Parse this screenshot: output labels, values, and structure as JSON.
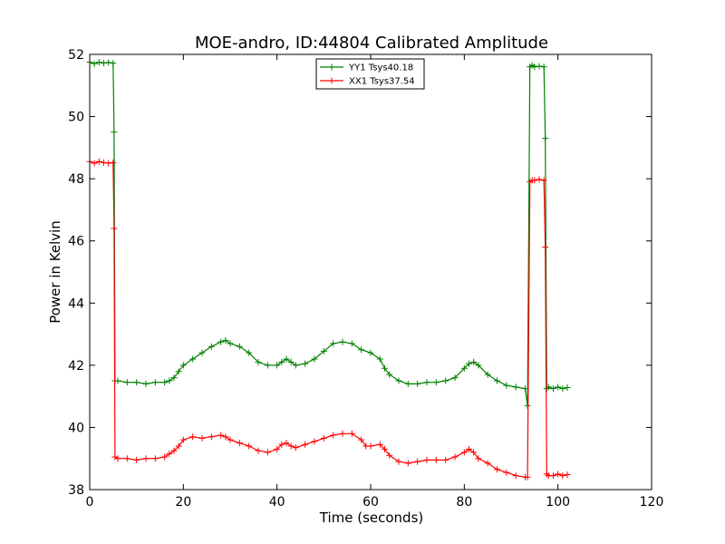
{
  "chart_data": {
    "type": "line",
    "title": "MOE-andro, ID:44804 Calibrated Amplitude",
    "xlabel": "Time (seconds)",
    "ylabel": "Power in Kelvin",
    "xlim": [
      0,
      120
    ],
    "ylim": [
      38,
      52
    ],
    "x_ticks": [
      0,
      20,
      40,
      60,
      80,
      100,
      120
    ],
    "y_ticks": [
      38,
      40,
      42,
      44,
      46,
      48,
      50,
      52
    ],
    "grid": false,
    "legend_position": "top-center",
    "series": [
      {
        "name": "YY1 Tsys40.18",
        "color": "#008000",
        "points": [
          [
            0,
            51.75
          ],
          [
            1,
            51.7
          ],
          [
            2,
            51.75
          ],
          [
            3,
            51.72
          ],
          [
            4,
            51.74
          ],
          [
            5,
            51.72
          ],
          [
            5.2,
            49.5
          ],
          [
            5.4,
            41.5
          ],
          [
            6,
            41.5
          ],
          [
            8,
            41.45
          ],
          [
            10,
            41.45
          ],
          [
            12,
            41.4
          ],
          [
            14,
            41.45
          ],
          [
            16,
            41.45
          ],
          [
            17,
            41.5
          ],
          [
            18,
            41.6
          ],
          [
            19,
            41.8
          ],
          [
            20,
            42.0
          ],
          [
            22,
            42.2
          ],
          [
            24,
            42.4
          ],
          [
            26,
            42.6
          ],
          [
            28,
            42.75
          ],
          [
            29,
            42.8
          ],
          [
            30,
            42.7
          ],
          [
            32,
            42.6
          ],
          [
            34,
            42.4
          ],
          [
            36,
            42.1
          ],
          [
            38,
            42.0
          ],
          [
            40,
            42.0
          ],
          [
            41,
            42.1
          ],
          [
            42,
            42.2
          ],
          [
            43,
            42.1
          ],
          [
            44,
            42.0
          ],
          [
            46,
            42.05
          ],
          [
            48,
            42.2
          ],
          [
            50,
            42.45
          ],
          [
            52,
            42.7
          ],
          [
            54,
            42.75
          ],
          [
            56,
            42.7
          ],
          [
            58,
            42.5
          ],
          [
            60,
            42.4
          ],
          [
            62,
            42.2
          ],
          [
            63,
            41.9
          ],
          [
            64,
            41.7
          ],
          [
            66,
            41.5
          ],
          [
            68,
            41.4
          ],
          [
            70,
            41.4
          ],
          [
            72,
            41.45
          ],
          [
            74,
            41.45
          ],
          [
            76,
            41.5
          ],
          [
            78,
            41.6
          ],
          [
            80,
            41.9
          ],
          [
            81,
            42.05
          ],
          [
            82,
            42.1
          ],
          [
            83,
            42.0
          ],
          [
            85,
            41.7
          ],
          [
            87,
            41.5
          ],
          [
            89,
            41.35
          ],
          [
            91,
            41.3
          ],
          [
            93,
            41.25
          ],
          [
            93.5,
            40.7
          ],
          [
            94,
            51.6
          ],
          [
            94.5,
            51.65
          ],
          [
            95,
            51.6
          ],
          [
            96,
            51.62
          ],
          [
            97,
            51.6
          ],
          [
            97.3,
            49.3
          ],
          [
            97.6,
            41.25
          ],
          [
            98,
            41.3
          ],
          [
            99,
            41.25
          ],
          [
            100,
            41.3
          ],
          [
            101,
            41.25
          ],
          [
            102,
            41.28
          ]
        ]
      },
      {
        "name": "XX1 Tsys37.54",
        "color": "#ff0000",
        "points": [
          [
            0,
            48.55
          ],
          [
            1,
            48.5
          ],
          [
            2,
            48.55
          ],
          [
            3,
            48.52
          ],
          [
            4,
            48.5
          ],
          [
            5,
            48.52
          ],
          [
            5.2,
            46.4
          ],
          [
            5.4,
            39.05
          ],
          [
            6,
            39.0
          ],
          [
            8,
            39.0
          ],
          [
            10,
            38.95
          ],
          [
            12,
            39.0
          ],
          [
            14,
            39.0
          ],
          [
            16,
            39.05
          ],
          [
            17,
            39.15
          ],
          [
            18,
            39.25
          ],
          [
            19,
            39.4
          ],
          [
            20,
            39.6
          ],
          [
            22,
            39.7
          ],
          [
            24,
            39.65
          ],
          [
            26,
            39.7
          ],
          [
            28,
            39.75
          ],
          [
            29,
            39.7
          ],
          [
            30,
            39.6
          ],
          [
            32,
            39.5
          ],
          [
            34,
            39.4
          ],
          [
            36,
            39.25
          ],
          [
            38,
            39.2
          ],
          [
            40,
            39.3
          ],
          [
            41,
            39.45
          ],
          [
            42,
            39.5
          ],
          [
            43,
            39.4
          ],
          [
            44,
            39.35
          ],
          [
            46,
            39.45
          ],
          [
            48,
            39.55
          ],
          [
            50,
            39.65
          ],
          [
            52,
            39.75
          ],
          [
            54,
            39.8
          ],
          [
            56,
            39.8
          ],
          [
            58,
            39.6
          ],
          [
            59,
            39.4
          ],
          [
            60,
            39.4
          ],
          [
            62,
            39.45
          ],
          [
            63,
            39.3
          ],
          [
            64,
            39.1
          ],
          [
            66,
            38.9
          ],
          [
            68,
            38.85
          ],
          [
            70,
            38.9
          ],
          [
            72,
            38.95
          ],
          [
            74,
            38.95
          ],
          [
            76,
            38.95
          ],
          [
            78,
            39.05
          ],
          [
            80,
            39.2
          ],
          [
            81,
            39.3
          ],
          [
            82,
            39.2
          ],
          [
            83,
            39.0
          ],
          [
            85,
            38.85
          ],
          [
            87,
            38.65
          ],
          [
            89,
            38.55
          ],
          [
            91,
            38.45
          ],
          [
            93,
            38.4
          ],
          [
            93.5,
            38.4
          ],
          [
            94,
            47.9
          ],
          [
            94.5,
            47.95
          ],
          [
            95,
            47.95
          ],
          [
            96,
            47.98
          ],
          [
            97,
            47.95
          ],
          [
            97.3,
            45.8
          ],
          [
            97.6,
            38.5
          ],
          [
            98,
            38.45
          ],
          [
            99,
            38.45
          ],
          [
            100,
            38.5
          ],
          [
            101,
            38.45
          ],
          [
            102,
            38.48
          ]
        ]
      }
    ]
  }
}
